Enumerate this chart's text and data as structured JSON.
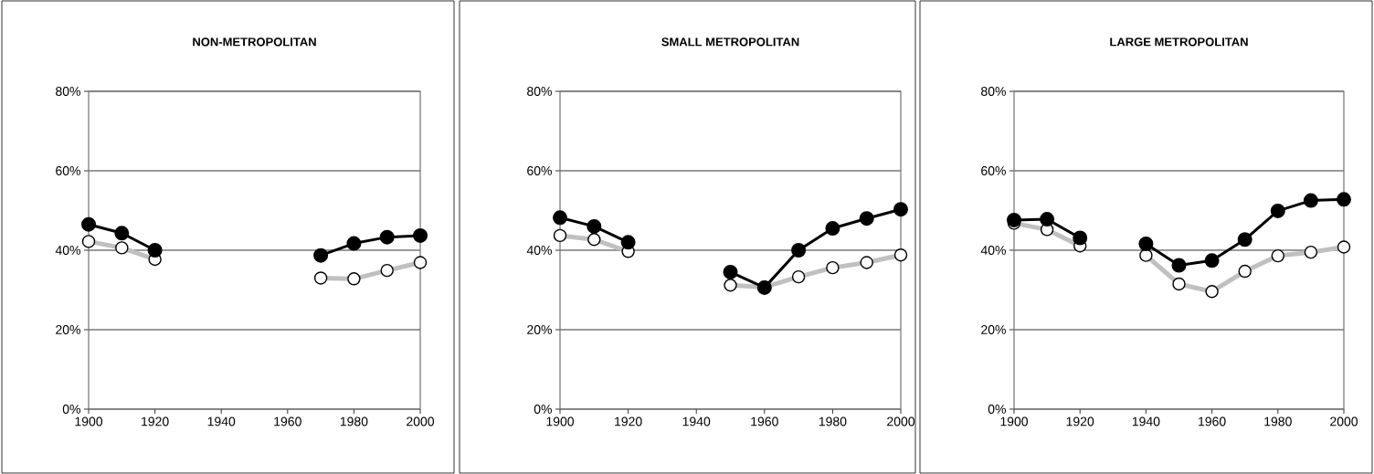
{
  "chart_data": [
    {
      "type": "line",
      "title": "NON-METROPOLITAN",
      "x": [
        1900,
        1910,
        1920,
        1930,
        1940,
        1950,
        1960,
        1970,
        1980,
        1990,
        2000
      ],
      "xlim": [
        1900,
        2000
      ],
      "xticks": [
        1900,
        1920,
        1940,
        1960,
        1980,
        2000
      ],
      "ylim": [
        0,
        80
      ],
      "yticks": [
        {
          "value": 0,
          "label": "0%"
        },
        {
          "value": 20,
          "label": "20%"
        },
        {
          "value": 40,
          "label": "40%"
        },
        {
          "value": 60,
          "label": "60%"
        },
        {
          "value": 80,
          "label": "80%"
        }
      ],
      "grid": "y",
      "marker": "circle",
      "series": [
        {
          "color": "#000000",
          "values": [
            46.5,
            44.3,
            40.0,
            null,
            null,
            null,
            null,
            38.7,
            41.7,
            43.3,
            43.7
          ]
        },
        {
          "color": "#c0c0c0",
          "values": [
            42.2,
            40.6,
            37.7,
            null,
            null,
            null,
            null,
            33.0,
            32.8,
            34.9,
            36.9
          ]
        }
      ]
    },
    {
      "type": "line",
      "title": "SMALL METROPOLITAN",
      "x": [
        1900,
        1910,
        1920,
        1930,
        1940,
        1950,
        1960,
        1970,
        1980,
        1990,
        2000
      ],
      "xlim": [
        1900,
        2000
      ],
      "xticks": [
        1900,
        1920,
        1940,
        1960,
        1980,
        2000
      ],
      "ylim": [
        0,
        80
      ],
      "yticks": [
        {
          "value": 0,
          "label": "0%"
        },
        {
          "value": 20,
          "label": "20%"
        },
        {
          "value": 40,
          "label": "40%"
        },
        {
          "value": 60,
          "label": "60%"
        },
        {
          "value": 80,
          "label": "80%"
        }
      ],
      "grid": "y",
      "marker": "circle",
      "series": [
        {
          "color": "#000000",
          "values": [
            48.2,
            46.0,
            42.0,
            null,
            null,
            34.5,
            30.6,
            40.0,
            45.5,
            48.0,
            50.3
          ]
        },
        {
          "color": "#c0c0c0",
          "values": [
            43.7,
            42.7,
            39.7,
            null,
            null,
            31.2,
            30.7,
            33.3,
            35.6,
            36.9,
            38.8
          ]
        }
      ]
    },
    {
      "type": "line",
      "title": "LARGE METROPOLITAN",
      "x": [
        1900,
        1910,
        1920,
        1930,
        1940,
        1950,
        1960,
        1970,
        1980,
        1990,
        2000
      ],
      "xlim": [
        1900,
        2000
      ],
      "xticks": [
        1900,
        1920,
        1940,
        1960,
        1980,
        2000
      ],
      "ylim": [
        0,
        80
      ],
      "yticks": [
        {
          "value": 0,
          "label": "0%"
        },
        {
          "value": 20,
          "label": "20%"
        },
        {
          "value": 40,
          "label": "40%"
        },
        {
          "value": 60,
          "label": "60%"
        },
        {
          "value": 80,
          "label": "80%"
        }
      ],
      "grid": "y",
      "marker": "circle",
      "series": [
        {
          "color": "#000000",
          "values": [
            47.6,
            47.8,
            43.1,
            null,
            41.6,
            36.2,
            37.4,
            42.7,
            49.9,
            52.5,
            52.8
          ]
        },
        {
          "color": "#c0c0c0",
          "values": [
            46.8,
            45.2,
            41.1,
            null,
            38.7,
            31.5,
            29.6,
            34.7,
            38.6,
            39.5,
            40.8
          ]
        }
      ]
    }
  ]
}
